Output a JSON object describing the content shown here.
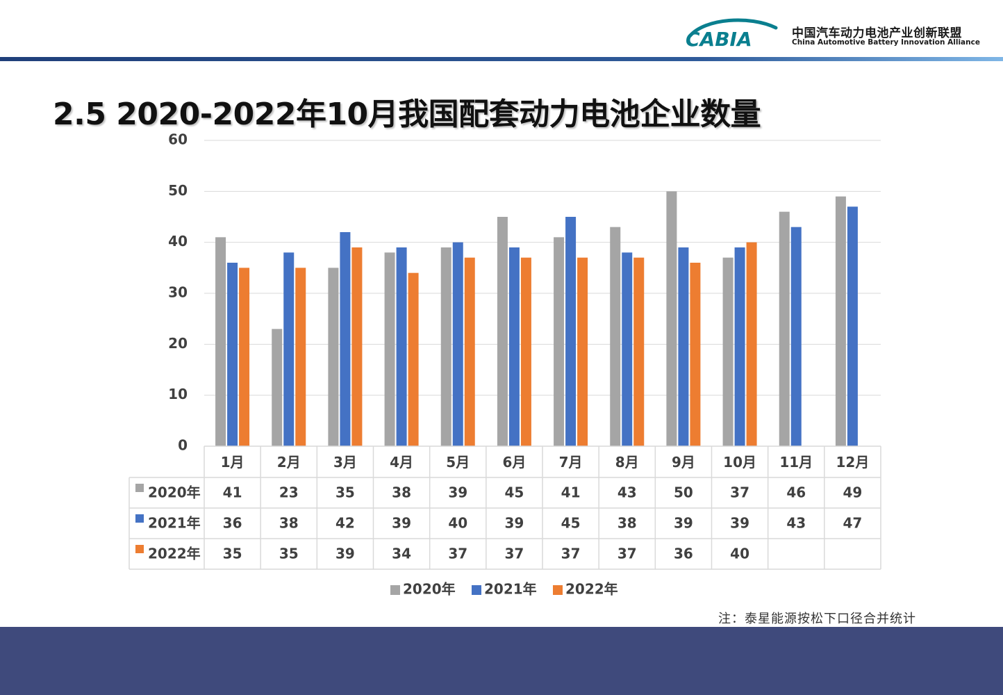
{
  "header": {
    "logo_mark": "CABIA",
    "org_name_cn": "中国汽车动力电池产业创新联盟",
    "org_name_en": "China Automotive Battery Innovation Alliance"
  },
  "title": "2.5  2020-2022年10月我国配套动力电池企业数量",
  "footnote": "注：泰星能源按松下口径合并统计",
  "colors": {
    "s2020": "#a5a5a5",
    "s2021": "#4472c4",
    "s2022": "#ed7d31",
    "grid": "#d9d9d9",
    "footer": "#3f4a7c"
  },
  "chart_data": {
    "type": "bar",
    "categories": [
      "1月",
      "2月",
      "3月",
      "4月",
      "5月",
      "6月",
      "7月",
      "8月",
      "9月",
      "10月",
      "11月",
      "12月"
    ],
    "series": [
      {
        "name": "2020年",
        "color": "#a5a5a5",
        "values": [
          41,
          23,
          35,
          38,
          39,
          45,
          41,
          43,
          50,
          37,
          46,
          49
        ]
      },
      {
        "name": "2021年",
        "color": "#4472c4",
        "values": [
          36,
          38,
          42,
          39,
          40,
          39,
          45,
          38,
          39,
          39,
          43,
          47
        ]
      },
      {
        "name": "2022年",
        "color": "#ed7d31",
        "values": [
          35,
          35,
          39,
          34,
          37,
          37,
          37,
          37,
          36,
          40,
          null,
          null
        ]
      }
    ],
    "ylim": [
      0,
      60
    ],
    "yticks": [
      0,
      10,
      20,
      30,
      40,
      50,
      60
    ],
    "grid": true,
    "data_table": true,
    "legend": "bottom"
  }
}
